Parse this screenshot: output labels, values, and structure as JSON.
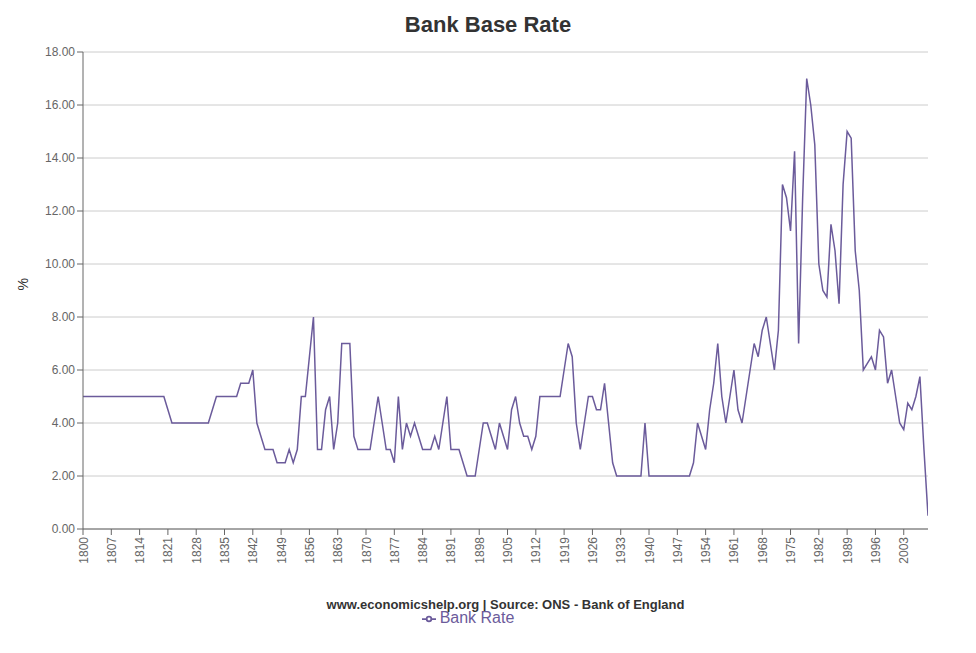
{
  "chart_data": {
    "type": "line",
    "title": "Bank Base Rate",
    "ylabel": "%",
    "xlabel": "www.economicshelp.org | Source: ONS - Bank of England",
    "grid": "y",
    "legend": "bottom",
    "xlim": [
      1800,
      2009
    ],
    "xticks": [
      1800,
      1807,
      1814,
      1821,
      1828,
      1835,
      1842,
      1849,
      1856,
      1863,
      1870,
      1877,
      1884,
      1891,
      1898,
      1905,
      1912,
      1919,
      1926,
      1933,
      1940,
      1947,
      1954,
      1961,
      1968,
      1975,
      1982,
      1989,
      1996,
      2003
    ],
    "ylim": [
      0,
      18
    ],
    "yticks": [
      {
        "value": 0,
        "label": "0.00"
      },
      {
        "value": 2,
        "label": "2.00"
      },
      {
        "value": 4,
        "label": "4.00"
      },
      {
        "value": 6,
        "label": "6.00"
      },
      {
        "value": 8,
        "label": "8.00"
      },
      {
        "value": 10,
        "label": "10.00"
      },
      {
        "value": 12,
        "label": "12.00"
      },
      {
        "value": 14,
        "label": "14.00"
      },
      {
        "value": 16,
        "label": "16.00"
      },
      {
        "value": 18,
        "label": "18.00"
      }
    ],
    "x": [
      1800,
      1801,
      1802,
      1803,
      1804,
      1805,
      1806,
      1807,
      1808,
      1809,
      1810,
      1811,
      1812,
      1813,
      1814,
      1815,
      1816,
      1817,
      1818,
      1819,
      1820,
      1821,
      1822,
      1823,
      1824,
      1825,
      1826,
      1827,
      1828,
      1829,
      1830,
      1831,
      1832,
      1833,
      1834,
      1835,
      1836,
      1837,
      1838,
      1839,
      1840,
      1841,
      1842,
      1843,
      1844,
      1845,
      1846,
      1847,
      1848,
      1849,
      1850,
      1851,
      1852,
      1853,
      1854,
      1855,
      1856,
      1857,
      1858,
      1859,
      1860,
      1861,
      1862,
      1863,
      1864,
      1865,
      1866,
      1867,
      1868,
      1869,
      1870,
      1871,
      1872,
      1873,
      1874,
      1875,
      1876,
      1877,
      1878,
      1879,
      1880,
      1881,
      1882,
      1883,
      1884,
      1885,
      1886,
      1887,
      1888,
      1889,
      1890,
      1891,
      1892,
      1893,
      1894,
      1895,
      1896,
      1897,
      1898,
      1899,
      1900,
      1901,
      1902,
      1903,
      1904,
      1905,
      1906,
      1907,
      1908,
      1909,
      1910,
      1911,
      1912,
      1913,
      1914,
      1915,
      1916,
      1917,
      1918,
      1919,
      1920,
      1921,
      1922,
      1923,
      1924,
      1925,
      1926,
      1927,
      1928,
      1929,
      1930,
      1931,
      1932,
      1933,
      1934,
      1935,
      1936,
      1937,
      1938,
      1939,
      1940,
      1941,
      1942,
      1943,
      1944,
      1945,
      1946,
      1947,
      1948,
      1949,
      1950,
      1951,
      1952,
      1953,
      1954,
      1955,
      1956,
      1957,
      1958,
      1959,
      1960,
      1961,
      1962,
      1963,
      1964,
      1965,
      1966,
      1967,
      1968,
      1969,
      1970,
      1971,
      1972,
      1973,
      1974,
      1975,
      1976,
      1977,
      1978,
      1979,
      1980,
      1981,
      1982,
      1983,
      1984,
      1985,
      1986,
      1987,
      1988,
      1989,
      1990,
      1991,
      1992,
      1993,
      1994,
      1995,
      1996,
      1997,
      1998,
      1999,
      2000,
      2001,
      2002,
      2003,
      2004,
      2005,
      2006,
      2007,
      2008,
      2009
    ],
    "series": [
      {
        "name": "Bank Rate",
        "color": "#6b5b9b",
        "values": [
          5.0,
          5.0,
          5.0,
          5.0,
          5.0,
          5.0,
          5.0,
          5.0,
          5.0,
          5.0,
          5.0,
          5.0,
          5.0,
          5.0,
          5.0,
          5.0,
          5.0,
          5.0,
          5.0,
          5.0,
          5.0,
          4.5,
          4.0,
          4.0,
          4.0,
          4.0,
          4.0,
          4.0,
          4.0,
          4.0,
          4.0,
          4.0,
          4.5,
          5.0,
          5.0,
          5.0,
          5.0,
          5.0,
          5.0,
          5.5,
          5.5,
          5.5,
          6.0,
          4.0,
          3.5,
          3.0,
          3.0,
          3.0,
          2.5,
          2.5,
          2.5,
          3.0,
          2.5,
          3.0,
          5.0,
          5.0,
          6.5,
          8.0,
          3.0,
          3.0,
          4.5,
          5.0,
          3.0,
          4.0,
          7.0,
          7.0,
          7.0,
          3.5,
          3.0,
          3.0,
          3.0,
          3.0,
          4.0,
          5.0,
          4.0,
          3.0,
          3.0,
          2.5,
          5.0,
          3.0,
          4.0,
          3.5,
          4.0,
          3.5,
          3.0,
          3.0,
          3.0,
          3.5,
          3.0,
          4.0,
          5.0,
          3.0,
          3.0,
          3.0,
          2.5,
          2.0,
          2.0,
          2.0,
          3.0,
          4.0,
          4.0,
          3.5,
          3.0,
          4.0,
          3.5,
          3.0,
          4.5,
          5.0,
          4.0,
          3.5,
          3.5,
          3.0,
          3.5,
          5.0,
          5.0,
          5.0,
          5.0,
          5.0,
          5.0,
          6.0,
          7.0,
          6.5,
          4.0,
          3.0,
          4.0,
          5.0,
          5.0,
          4.5,
          4.5,
          5.5,
          4.0,
          2.5,
          2.0,
          2.0,
          2.0,
          2.0,
          2.0,
          2.0,
          2.0,
          4.0,
          2.0,
          2.0,
          2.0,
          2.0,
          2.0,
          2.0,
          2.0,
          2.0,
          2.0,
          2.0,
          2.0,
          2.5,
          4.0,
          3.5,
          3.0,
          4.5,
          5.5,
          7.0,
          5.0,
          4.0,
          5.0,
          6.0,
          4.5,
          4.0,
          5.0,
          6.0,
          7.0,
          6.5,
          7.5,
          8.0,
          7.0,
          6.0,
          7.5,
          13.0,
          12.5,
          11.25,
          14.25,
          7.0,
          12.5,
          17.0,
          16.0,
          14.5,
          10.0,
          9.0,
          8.75,
          11.5,
          10.5,
          8.5,
          13.0,
          15.0,
          14.75,
          10.5,
          9.0,
          6.0,
          6.25,
          6.5,
          6.0,
          7.5,
          7.25,
          5.5,
          6.0,
          5.0,
          4.0,
          3.75,
          4.75,
          4.5,
          5.0,
          5.75,
          3.0,
          0.5
        ]
      }
    ]
  }
}
